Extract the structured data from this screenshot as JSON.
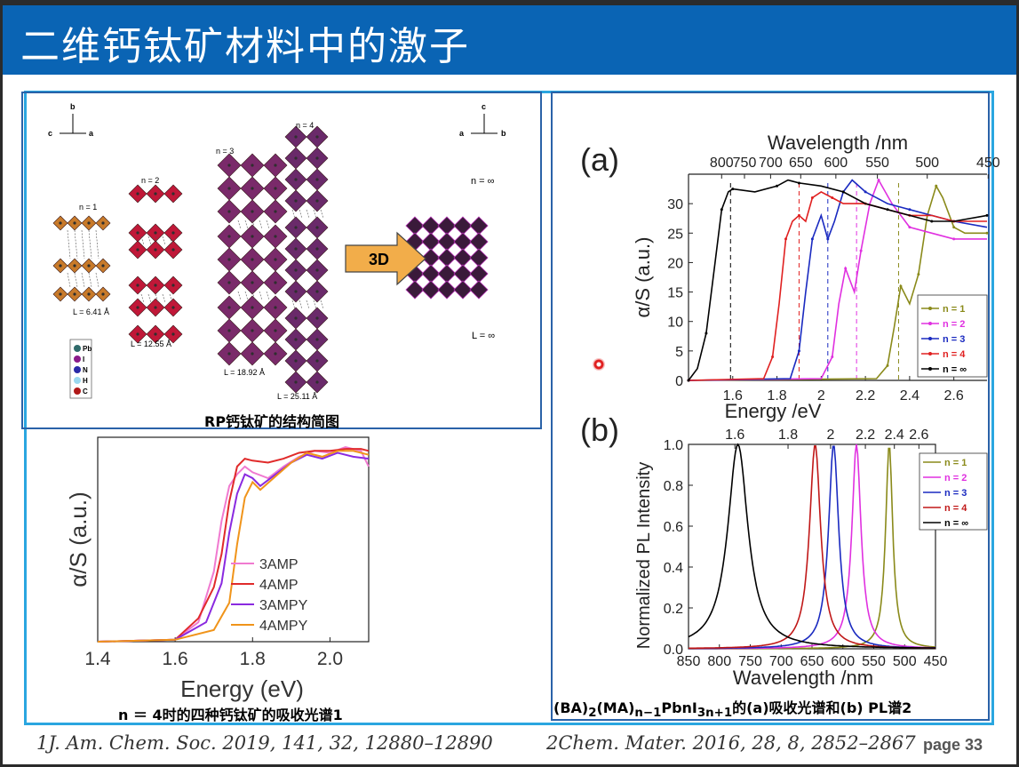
{
  "slide": {
    "title": "二维钙钛矿材料中的激子",
    "page_label": "page 33"
  },
  "structure_figure": {
    "caption": "RP钙钛矿的结构简图",
    "axes_left": {
      "b": "b",
      "c": "c",
      "a": "a"
    },
    "axes_right": {
      "c": "c",
      "a": "a",
      "b": "b"
    },
    "labels_n": [
      "n = 1",
      "n = 2",
      "n = 3",
      "n = 4",
      "n = ∞"
    ],
    "labels_L": [
      "L = 6.41 Å",
      "L = 12.55 Å",
      "L = 18.92 Å",
      "L = 25.11 Å",
      "L = ∞"
    ],
    "arrow_label": "3D",
    "legend_atoms": [
      "Pb",
      "I",
      "N",
      "H",
      "C"
    ],
    "atom_colors": {
      "Pb": "#2f6b6b",
      "I": "#8a1a8a",
      "N": "#2a2aa8",
      "H": "#9ad8f0",
      "C": "#b01818"
    },
    "octahedron_colors": {
      "n1": "#c87a2a",
      "n2": "#c01838",
      "n3": "#7a2a6a",
      "n4": "#6a2a6a",
      "ninf": "#3a1a3a"
    }
  },
  "amp_chart": {
    "caption": "n ＝ 4时的四种钙钛矿的吸收光谱1",
    "chart_data": {
      "type": "line",
      "xlabel": "Energy (eV)",
      "ylabel": "α/S (a.u.)",
      "xlim": [
        1.4,
        2.1
      ],
      "xticks": [
        "1.4",
        "1.6",
        "1.8",
        "2.0"
      ],
      "ylim": [
        0,
        1.05
      ],
      "legend_position": "bottom-right",
      "series": [
        {
          "name": "3AMP",
          "color": "#f07ad0",
          "x": [
            1.4,
            1.6,
            1.66,
            1.7,
            1.72,
            1.74,
            1.76,
            1.78,
            1.8,
            1.84,
            1.88,
            1.92,
            1.96,
            2.0,
            2.04,
            2.08,
            2.1
          ],
          "y": [
            0.0,
            0.01,
            0.1,
            0.36,
            0.62,
            0.8,
            0.86,
            0.9,
            0.87,
            0.84,
            0.9,
            0.95,
            0.98,
            0.97,
            1.0,
            0.98,
            0.9
          ]
        },
        {
          "name": "4AMP",
          "color": "#e02a2a",
          "x": [
            1.4,
            1.6,
            1.66,
            1.7,
            1.72,
            1.74,
            1.76,
            1.78,
            1.8,
            1.84,
            1.88,
            1.92,
            1.96,
            2.0,
            2.04,
            2.08,
            2.1
          ],
          "y": [
            0.0,
            0.01,
            0.12,
            0.28,
            0.45,
            0.72,
            0.9,
            0.94,
            0.93,
            0.92,
            0.94,
            0.97,
            0.98,
            0.98,
            0.99,
            0.99,
            0.98
          ]
        },
        {
          "name": "3AMPY",
          "color": "#8a2ae0",
          "x": [
            1.4,
            1.6,
            1.68,
            1.72,
            1.74,
            1.76,
            1.78,
            1.8,
            1.82,
            1.86,
            1.9,
            1.94,
            1.98,
            2.02,
            2.06,
            2.1
          ],
          "y": [
            0.0,
            0.01,
            0.1,
            0.3,
            0.56,
            0.76,
            0.86,
            0.84,
            0.8,
            0.86,
            0.92,
            0.96,
            0.94,
            0.97,
            0.95,
            0.94
          ]
        },
        {
          "name": "4AMPY",
          "color": "#f0941a",
          "x": [
            1.4,
            1.6,
            1.7,
            1.74,
            1.76,
            1.78,
            1.8,
            1.82,
            1.86,
            1.9,
            1.94,
            1.98,
            2.02,
            2.06,
            2.1
          ],
          "y": [
            0.0,
            0.01,
            0.06,
            0.2,
            0.5,
            0.74,
            0.82,
            0.78,
            0.85,
            0.92,
            0.97,
            0.95,
            0.98,
            0.98,
            0.96
          ]
        }
      ]
    }
  },
  "abs_chart": {
    "panel_label": "(a)",
    "chart_data": {
      "type": "line",
      "xlabel": "Energy /eV",
      "ylabel": "α/S (a.u.)",
      "top_axis_label": "Wavelength /nm",
      "top_ticks": [
        "800",
        "750",
        "700",
        "650",
        "600",
        "550",
        "500",
        "450"
      ],
      "xlim": [
        1.4,
        2.75
      ],
      "xticks": [
        "1.6",
        "1.8",
        "2",
        "2.2",
        "2.4",
        "2.6"
      ],
      "ylim": [
        0,
        35
      ],
      "yticks": [
        "0",
        "5",
        "10",
        "15",
        "20",
        "25",
        "30"
      ],
      "legend_position": "bottom-right",
      "series": [
        {
          "name": "n = 1",
          "color": "#8a8a1a",
          "x": [
            1.4,
            2.25,
            2.3,
            2.33,
            2.36,
            2.4,
            2.44,
            2.48,
            2.52,
            2.55,
            2.6,
            2.65,
            2.75
          ],
          "y": [
            0,
            0.3,
            2.5,
            9,
            16,
            13,
            18,
            28,
            33,
            31,
            26,
            25,
            25
          ]
        },
        {
          "name": "n = 2",
          "color": "#e030e0",
          "x": [
            1.4,
            2.0,
            2.05,
            2.08,
            2.11,
            2.15,
            2.18,
            2.22,
            2.26,
            2.32,
            2.4,
            2.5,
            2.6,
            2.75
          ],
          "y": [
            0,
            0.3,
            4,
            13,
            19,
            15,
            22,
            30,
            34,
            30,
            26,
            25,
            24,
            24
          ]
        },
        {
          "name": "n = 3",
          "color": "#1a2ac0",
          "x": [
            1.4,
            1.86,
            1.9,
            1.93,
            1.96,
            2.0,
            2.03,
            2.06,
            2.1,
            2.14,
            2.2,
            2.3,
            2.4,
            2.5,
            2.6,
            2.75
          ],
          "y": [
            0,
            0.3,
            5,
            15,
            24,
            28,
            24,
            27,
            32,
            34,
            32,
            30,
            29,
            28,
            27,
            26
          ]
        },
        {
          "name": "n = 4",
          "color": "#e02020",
          "x": [
            1.4,
            1.74,
            1.78,
            1.81,
            1.84,
            1.87,
            1.9,
            1.93,
            1.96,
            2.0,
            2.05,
            2.1,
            2.2,
            2.3,
            2.4,
            2.5,
            2.6,
            2.75
          ],
          "y": [
            0,
            0.3,
            4,
            13,
            24,
            27,
            28,
            27,
            31,
            32,
            31,
            30,
            30,
            29,
            28,
            28,
            27,
            27
          ]
        },
        {
          "name": "n = ∞",
          "color": "#000000",
          "x": [
            1.4,
            1.44,
            1.48,
            1.52,
            1.55,
            1.58,
            1.6,
            1.7,
            1.8,
            1.85,
            1.9,
            2.0,
            2.1,
            2.2,
            2.3,
            2.4,
            2.5,
            2.6,
            2.75
          ],
          "y": [
            0,
            2,
            8,
            20,
            29,
            32,
            32.5,
            32,
            33,
            34,
            33.5,
            33,
            32,
            30,
            29,
            28,
            27,
            27,
            28
          ]
        }
      ]
    }
  },
  "pl_chart": {
    "panel_label": "(b)",
    "chart_data": {
      "type": "line",
      "xlabel": "Wavelength /nm",
      "ylabel": "Normalized PL Intensity",
      "top_ticks": [
        "1.6",
        "1.8",
        "2",
        "2.2",
        "2.4",
        "2.6"
      ],
      "xlim": [
        850,
        450
      ],
      "xticks": [
        "850",
        "800",
        "750",
        "700",
        "650",
        "600",
        "550",
        "500",
        "450"
      ],
      "ylim": [
        0,
        1.0
      ],
      "yticks": [
        "0.0",
        "0.2",
        "0.4",
        "0.6",
        "0.8",
        "1.0"
      ],
      "legend_position": "top-right",
      "series": [
        {
          "name": "n = 1",
          "color": "#8a8a1a",
          "peak_nm": 525,
          "fwhm_nm": 14
        },
        {
          "name": "n = 2",
          "color": "#e030e0",
          "peak_nm": 578,
          "fwhm_nm": 18
        },
        {
          "name": "n = 3",
          "color": "#1a2ac0",
          "peak_nm": 615,
          "fwhm_nm": 20
        },
        {
          "name": "n = 4",
          "color": "#c01818",
          "peak_nm": 645,
          "fwhm_nm": 22
        },
        {
          "name": "n = ∞",
          "color": "#000000",
          "peak_nm": 770,
          "fwhm_nm": 40
        }
      ]
    }
  },
  "right_caption_parts": {
    "a": "(BA)",
    "a_sub": "2",
    "b": "(MA)",
    "b_sub": "n−1",
    "c": "PbnI",
    "c_sub": "3n+1",
    "d": "的(a)吸收光谱和(b) PL谱2"
  },
  "references": {
    "ref1": "1J. Am. Chem. Soc. 2019, 141, 32, 12880–12890",
    "ref2": "2Chem. Mater. 2016, 28, 8, 2852–2867"
  },
  "cursor_color": "#e02020"
}
